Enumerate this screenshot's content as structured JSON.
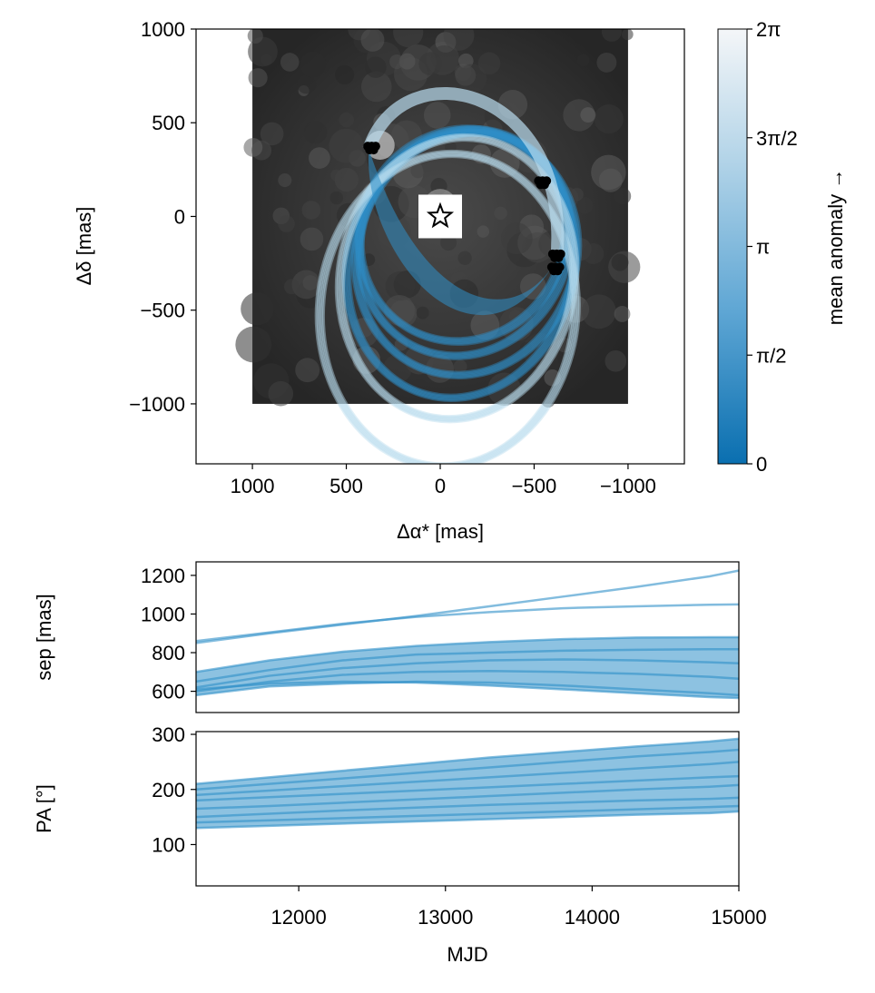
{
  "colors": {
    "orbit": "#2f8fc8",
    "orbit_light": "#b9dcee",
    "bg_image": "#2b2b2b",
    "axis": "#000000"
  },
  "chart_data": [
    {
      "type": "line",
      "panel": "sky",
      "xlabel": "Δα* [mas]",
      "ylabel": "Δδ [mas]",
      "xlim": [
        1300,
        -1300
      ],
      "ylim": [
        -1320,
        1000
      ],
      "xticks": [
        1000,
        500,
        0,
        -500,
        -1000
      ],
      "xtick_labels": [
        "1000",
        "500",
        "0",
        "−500",
        "−1000"
      ],
      "yticks": [
        1000,
        500,
        0,
        -500,
        -1000
      ],
      "ytick_labels": [
        "1000",
        "500",
        "0",
        "−500",
        "−1000"
      ],
      "image_extent": {
        "x": [
          1000,
          -1000
        ],
        "y": [
          -1000,
          1000
        ]
      },
      "star": {
        "x": 0,
        "y": 0,
        "marker": "star-icon"
      },
      "observations": [
        {
          "x": 365,
          "y": 365
        },
        {
          "x": -545,
          "y": 180
        },
        {
          "x": -620,
          "y": -210
        },
        {
          "x": -615,
          "y": -280
        }
      ],
      "orbits": [
        {
          "cx": -120,
          "cy": -100,
          "a": 520,
          "b": 560,
          "rot": 30
        },
        {
          "cx": -130,
          "cy": -140,
          "a": 530,
          "b": 600,
          "rot": 25
        },
        {
          "cx": -140,
          "cy": -200,
          "a": 560,
          "b": 640,
          "rot": 20
        },
        {
          "cx": -110,
          "cy": -260,
          "a": 580,
          "b": 700,
          "rot": 15
        },
        {
          "cx": -90,
          "cy": -330,
          "a": 600,
          "b": 740,
          "rot": 10
        },
        {
          "cx": -40,
          "cy": -500,
          "a": 660,
          "b": 820,
          "rot": 5
        }
      ],
      "grid": false
    },
    {
      "type": "line",
      "panel": "separation",
      "xlabel": "",
      "ylabel": "sep [mas]",
      "xlim": [
        11300,
        15000
      ],
      "ylim": [
        490,
        1270
      ],
      "yticks": [
        600,
        800,
        1000,
        1200
      ],
      "ytick_labels": [
        "600",
        "800",
        "1000",
        "1200"
      ],
      "x": [
        11300,
        11800,
        12300,
        12800,
        13300,
        13800,
        14300,
        14800,
        15000
      ],
      "series": [
        {
          "values": [
            850,
            900,
            945,
            990,
            1040,
            1090,
            1140,
            1195,
            1225
          ]
        },
        {
          "values": [
            860,
            905,
            950,
            985,
            1010,
            1030,
            1040,
            1048,
            1050
          ]
        },
        {
          "values": [
            700,
            760,
            805,
            835,
            855,
            870,
            878,
            880,
            880
          ]
        },
        {
          "values": [
            650,
            710,
            760,
            790,
            800,
            810,
            815,
            818,
            818
          ]
        },
        {
          "values": [
            620,
            680,
            720,
            745,
            760,
            765,
            760,
            750,
            745
          ]
        },
        {
          "values": [
            600,
            650,
            685,
            700,
            705,
            700,
            690,
            675,
            665
          ]
        },
        {
          "values": [
            580,
            625,
            640,
            650,
            645,
            630,
            610,
            590,
            580
          ]
        },
        {
          "values": [
            610,
            640,
            650,
            645,
            630,
            610,
            590,
            570,
            565
          ]
        }
      ],
      "grid": false
    },
    {
      "type": "line",
      "panel": "position_angle",
      "xlabel": "MJD",
      "ylabel": "PA [°]",
      "xlim": [
        11300,
        15000
      ],
      "ylim": [
        25,
        305
      ],
      "xticks": [
        12000,
        13000,
        14000,
        15000
      ],
      "xtick_labels": [
        "12000",
        "13000",
        "14000",
        "15000"
      ],
      "yticks": [
        100,
        200,
        300
      ],
      "ytick_labels": [
        "100",
        "200",
        "300"
      ],
      "x": [
        11300,
        11800,
        12300,
        12800,
        13300,
        13800,
        14300,
        14800,
        15000
      ],
      "series": [
        {
          "values": [
            210,
            222,
            234,
            246,
            258,
            268,
            278,
            287,
            292
          ]
        },
        {
          "values": [
            200,
            210,
            220,
            230,
            240,
            250,
            260,
            268,
            272
          ]
        },
        {
          "values": [
            190,
            198,
            206,
            214,
            222,
            230,
            238,
            246,
            250
          ]
        },
        {
          "values": [
            180,
            186,
            192,
            198,
            204,
            210,
            216,
            222,
            224
          ]
        },
        {
          "values": [
            165,
            170,
            176,
            182,
            188,
            194,
            200,
            205,
            208
          ]
        },
        {
          "values": [
            150,
            156,
            162,
            167,
            172,
            176,
            180,
            183,
            185
          ]
        },
        {
          "values": [
            140,
            144,
            148,
            152,
            156,
            160,
            164,
            168,
            170
          ]
        },
        {
          "values": [
            130,
            134,
            138,
            142,
            146,
            150,
            154,
            157,
            160
          ]
        }
      ],
      "grid": false
    },
    {
      "type": "heatmap",
      "panel": "colorbar",
      "label": "mean anomaly →",
      "range": [
        0,
        6.2832
      ],
      "ticks": [
        0,
        1.5708,
        3.1416,
        4.7124,
        6.2832
      ],
      "tick_labels": [
        "0",
        "π/2",
        "π",
        "3π/2",
        "2π"
      ],
      "color_low": "#0a6fb0",
      "color_high": "#f4f6f8"
    }
  ]
}
